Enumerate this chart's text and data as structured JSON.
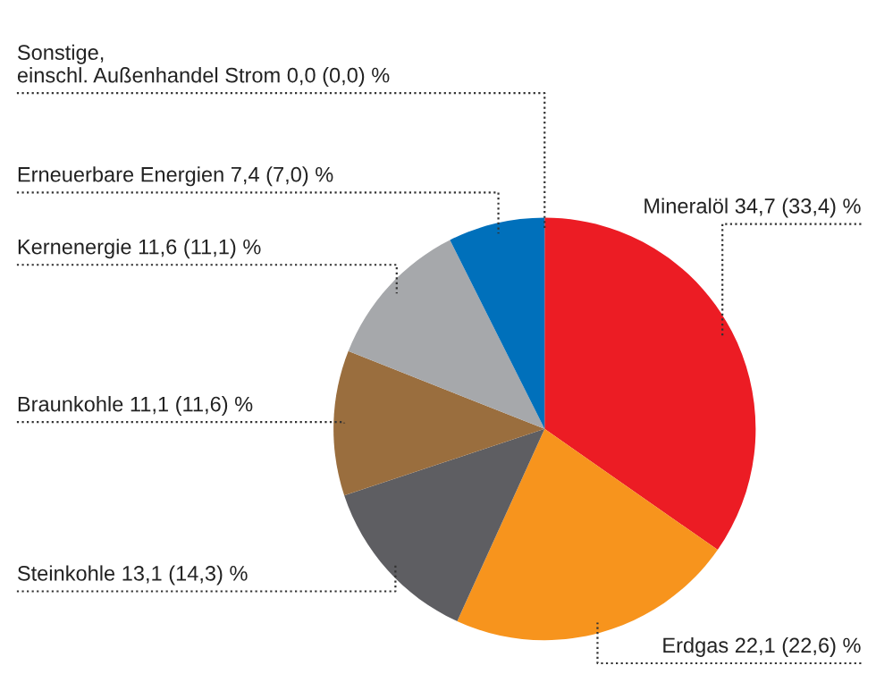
{
  "chart_data": {
    "type": "pie",
    "categories": [
      "Mineralöl",
      "Erdgas",
      "Steinkohle",
      "Braunkohle",
      "Kernenergie",
      "Erneuerbare Energien",
      "Sonstige,\neinschl. Außenhandel Strom"
    ],
    "values": [
      34.7,
      22.1,
      13.1,
      11.1,
      11.6,
      7.4,
      0.0
    ],
    "value_labels": [
      "34,7 (33,4) %",
      "22,1 (22,6) %",
      "13,1 (14,3) %",
      "11,1 (11,6) %",
      "11,6 (11,1) %",
      "7,4 (7,0) %",
      "0,0 (0,0) %"
    ],
    "colors": [
      "#ec1c24",
      "#f7941d",
      "#5e5e62",
      "#9a6e3e",
      "#a6a8ab",
      "#0070bb",
      "#cccccc"
    ],
    "legend": false
  }
}
